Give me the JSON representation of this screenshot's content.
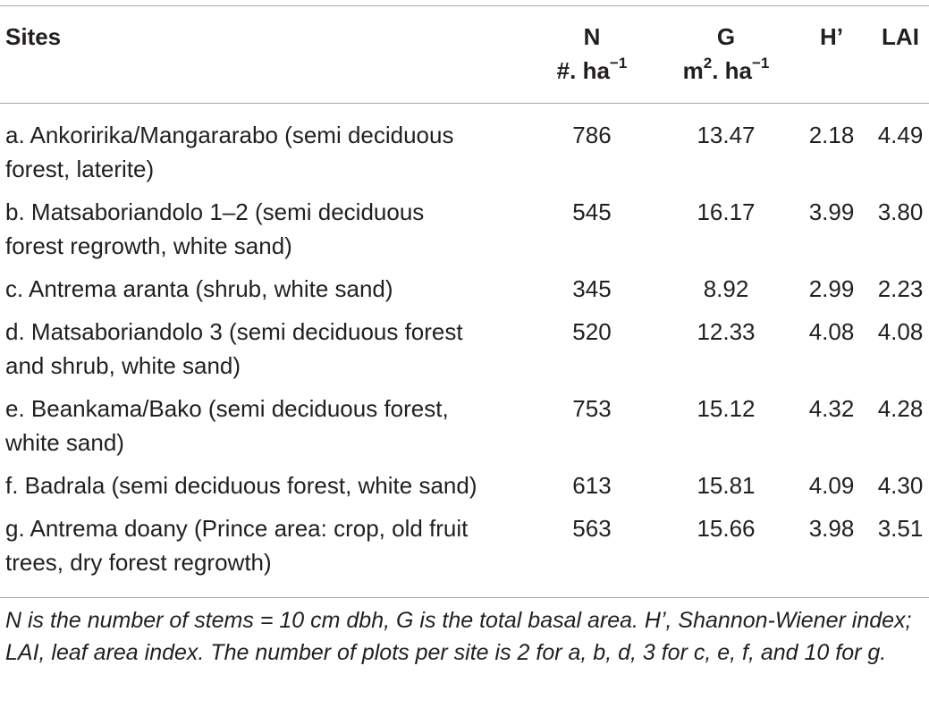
{
  "table": {
    "headers": {
      "sites": "Sites",
      "n_label": "N",
      "n_unit_base": "#. ha",
      "n_unit_exp": "−1",
      "g_label": "G",
      "g_unit_m": "m",
      "g_unit_m_exp": "2",
      "g_unit_rest": ". ha",
      "g_unit_exp": "−1",
      "h": "H’",
      "lai": "LAI"
    },
    "rows": [
      {
        "site_line1": "a. Ankoririka/Mangararabo (semi deciduous",
        "site_line2": "forest, laterite)",
        "n": "786",
        "g": "13.47",
        "h": "2.18",
        "lai": "4.49"
      },
      {
        "site_line1": "b. Matsaboriandolo 1–2 (semi deciduous",
        "site_line2": "forest regrowth, white sand)",
        "n": "545",
        "g": "16.17",
        "h": "3.99",
        "lai": "3.80"
      },
      {
        "site_line1": "c. Antrema aranta (shrub, white sand)",
        "site_line2": "",
        "n": "345",
        "g": "8.92",
        "h": "2.99",
        "lai": "2.23"
      },
      {
        "site_line1": "d. Matsaboriandolo 3 (semi deciduous forest",
        "site_line2": "and shrub, white sand)",
        "n": "520",
        "g": "12.33",
        "h": "4.08",
        "lai": "4.08"
      },
      {
        "site_line1": "e. Beankama/Bako (semi deciduous forest,",
        "site_line2": "white sand)",
        "n": "753",
        "g": "15.12",
        "h": "4.32",
        "lai": "4.28"
      },
      {
        "site_line1": "f. Badrala (semi deciduous forest, white sand)",
        "site_line2": "",
        "n": "613",
        "g": "15.81",
        "h": "4.09",
        "lai": "4.30"
      },
      {
        "site_line1": "g. Antrema doany (Prince area: crop, old fruit",
        "site_line2": "trees, dry forest regrowth)",
        "n": "563",
        "g": "15.66",
        "h": "3.98",
        "lai": "3.51"
      }
    ],
    "footnote": "N is the number of stems = 10 cm dbh, G is the total basal area. H’, Shannon-Wiener index; LAI, leaf area index. The number of plots per site is 2 for a, b, d, 3 for c, e, f, and 10 for g."
  }
}
